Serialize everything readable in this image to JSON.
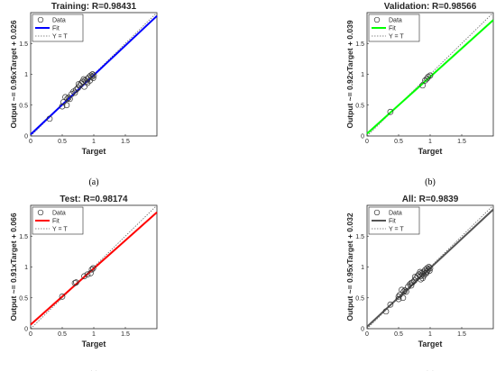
{
  "chart_data": [
    {
      "type": "scatter",
      "title": "Training: R=0.98431",
      "xlabel": "Target",
      "ylabel": "Output ~= 0.96xTarget + 0.026",
      "caption": "(a)",
      "xlim": [
        0,
        2
      ],
      "ylim": [
        0,
        2
      ],
      "xticks": [
        0,
        0.5,
        1,
        1.5
      ],
      "yticks": [
        0,
        0.5,
        1,
        1.5
      ],
      "fit": {
        "slope": 0.96,
        "intercept": 0.026,
        "color": "#0000ff"
      },
      "legend": [
        "Data",
        "Fit",
        "Y = T"
      ],
      "legend_position": "top-left",
      "points": [
        [
          0.3,
          0.28
        ],
        [
          0.5,
          0.48
        ],
        [
          0.52,
          0.55
        ],
        [
          0.55,
          0.63
        ],
        [
          0.57,
          0.5
        ],
        [
          0.58,
          0.6
        ],
        [
          0.6,
          0.62
        ],
        [
          0.62,
          0.6
        ],
        [
          0.65,
          0.68
        ],
        [
          0.7,
          0.7
        ],
        [
          0.72,
          0.75
        ],
        [
          0.75,
          0.78
        ],
        [
          0.78,
          0.82
        ],
        [
          0.8,
          0.85
        ],
        [
          0.82,
          0.88
        ],
        [
          0.85,
          0.8
        ],
        [
          0.86,
          0.9
        ],
        [
          0.88,
          0.88
        ],
        [
          0.9,
          0.92
        ],
        [
          0.92,
          0.95
        ],
        [
          0.94,
          0.9
        ],
        [
          0.95,
          0.98
        ],
        [
          0.97,
          0.96
        ],
        [
          0.98,
          1.0
        ],
        [
          1.0,
          0.98
        ],
        [
          0.9,
          0.86
        ],
        [
          0.84,
          0.92
        ],
        [
          0.76,
          0.84
        ],
        [
          0.68,
          0.72
        ],
        [
          0.99,
          0.94
        ]
      ]
    },
    {
      "type": "scatter",
      "title": "Validation: R=0.98566",
      "xlabel": "Target",
      "ylabel": "Output ~= 0.92xTarget + 0.039",
      "caption": "(b)",
      "xlim": [
        0,
        2
      ],
      "ylim": [
        0,
        2
      ],
      "xticks": [
        0,
        0.5,
        1,
        1.5
      ],
      "yticks": [
        0,
        0.5,
        1,
        1.5
      ],
      "fit": {
        "slope": 0.92,
        "intercept": 0.039,
        "color": "#00ff00"
      },
      "legend": [
        "Data",
        "Fit",
        "Y = T"
      ],
      "legend_position": "top-left",
      "points": [
        [
          0.37,
          0.39
        ],
        [
          0.88,
          0.82
        ],
        [
          0.92,
          0.9
        ],
        [
          0.95,
          0.93
        ],
        [
          0.97,
          0.96
        ],
        [
          1.0,
          0.98
        ]
      ]
    },
    {
      "type": "scatter",
      "title": "Test: R=0.98174",
      "xlabel": "Target",
      "ylabel": "Output ~= 0.91xTarget + 0.066",
      "caption": "(c)",
      "xlim": [
        0,
        2
      ],
      "ylim": [
        0,
        2
      ],
      "xticks": [
        0,
        0.5,
        1,
        1.5
      ],
      "yticks": [
        0,
        0.5,
        1,
        1.5
      ],
      "fit": {
        "slope": 0.91,
        "intercept": 0.066,
        "color": "#ff0000"
      },
      "legend": [
        "Data",
        "Fit",
        "Y = T"
      ],
      "legend_position": "top-left",
      "points": [
        [
          0.5,
          0.52
        ],
        [
          0.7,
          0.74
        ],
        [
          0.72,
          0.75
        ],
        [
          0.85,
          0.85
        ],
        [
          0.9,
          0.88
        ],
        [
          0.95,
          0.9
        ],
        [
          0.97,
          0.96
        ],
        [
          0.99,
          0.98
        ]
      ]
    },
    {
      "type": "scatter",
      "title": "All: R=0.9839",
      "xlabel": "Target",
      "ylabel": "Output ~= 0.95xTarget + 0.032",
      "caption": "(d)",
      "xlim": [
        0,
        2
      ],
      "ylim": [
        0,
        2
      ],
      "xticks": [
        0,
        0.5,
        1,
        1.5
      ],
      "yticks": [
        0,
        0.5,
        1,
        1.5
      ],
      "fit": {
        "slope": 0.95,
        "intercept": 0.032,
        "color": "#555555"
      },
      "legend": [
        "Data",
        "Fit",
        "Y = T"
      ],
      "legend_position": "top-left",
      "points": [
        [
          0.3,
          0.28
        ],
        [
          0.37,
          0.39
        ],
        [
          0.5,
          0.48
        ],
        [
          0.5,
          0.52
        ],
        [
          0.52,
          0.55
        ],
        [
          0.55,
          0.63
        ],
        [
          0.57,
          0.5
        ],
        [
          0.58,
          0.6
        ],
        [
          0.6,
          0.62
        ],
        [
          0.62,
          0.6
        ],
        [
          0.65,
          0.68
        ],
        [
          0.68,
          0.72
        ],
        [
          0.7,
          0.7
        ],
        [
          0.7,
          0.74
        ],
        [
          0.72,
          0.75
        ],
        [
          0.75,
          0.78
        ],
        [
          0.76,
          0.84
        ],
        [
          0.78,
          0.82
        ],
        [
          0.8,
          0.85
        ],
        [
          0.82,
          0.88
        ],
        [
          0.84,
          0.92
        ],
        [
          0.85,
          0.8
        ],
        [
          0.85,
          0.85
        ],
        [
          0.86,
          0.9
        ],
        [
          0.88,
          0.82
        ],
        [
          0.88,
          0.88
        ],
        [
          0.9,
          0.92
        ],
        [
          0.9,
          0.86
        ],
        [
          0.92,
          0.95
        ],
        [
          0.92,
          0.9
        ],
        [
          0.94,
          0.9
        ],
        [
          0.95,
          0.98
        ],
        [
          0.95,
          0.93
        ],
        [
          0.97,
          0.96
        ],
        [
          0.98,
          1.0
        ],
        [
          0.99,
          0.94
        ],
        [
          1.0,
          0.98
        ]
      ]
    }
  ]
}
